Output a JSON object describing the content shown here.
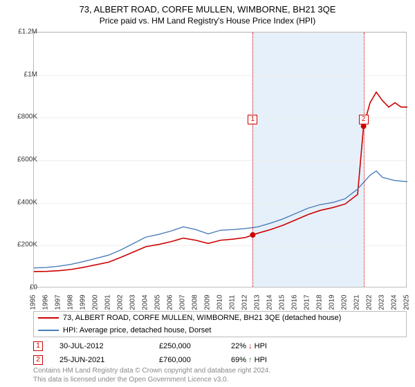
{
  "title": "73, ALBERT ROAD, CORFE MULLEN, WIMBORNE, BH21 3QE",
  "subtitle": "Price paid vs. HM Land Registry's House Price Index (HPI)",
  "chart": {
    "type": "line",
    "background_color": "#ffffff",
    "grid_color": "#eeeeee",
    "border_color": "#bbbbbb",
    "ylim": [
      0,
      1200000
    ],
    "ytick_step": 200000,
    "yticks": [
      "£0",
      "£200K",
      "£400K",
      "£600K",
      "£800K",
      "£1M",
      "£1.2M"
    ],
    "xlim": [
      1995,
      2025
    ],
    "xticks": [
      1995,
      1996,
      1997,
      1998,
      1999,
      2000,
      2001,
      2002,
      2003,
      2004,
      2005,
      2006,
      2007,
      2008,
      2009,
      2010,
      2011,
      2012,
      2013,
      2014,
      2015,
      2016,
      2017,
      2018,
      2019,
      2020,
      2021,
      2022,
      2023,
      2024,
      2025
    ],
    "shaded_region": {
      "start": 2012.58,
      "end": 2021.48,
      "color": "#e6f0fa"
    },
    "event_lines": [
      {
        "x": 2012.58,
        "color": "#cc0000",
        "label_y": 0.34
      },
      {
        "x": 2021.48,
        "color": "#cc0000",
        "label_y": 0.34
      }
    ],
    "series": [
      {
        "name": "property",
        "color": "#cc0000",
        "width": 1.6,
        "markers": [
          {
            "x": 2012.58,
            "y": 250000
          },
          {
            "x": 2021.48,
            "y": 760000
          }
        ],
        "points": [
          [
            1995,
            78000
          ],
          [
            1996,
            79000
          ],
          [
            1997,
            82000
          ],
          [
            1998,
            88000
          ],
          [
            1999,
            98000
          ],
          [
            2000,
            110000
          ],
          [
            2001,
            122000
          ],
          [
            2002,
            145000
          ],
          [
            2003,
            170000
          ],
          [
            2004,
            195000
          ],
          [
            2005,
            205000
          ],
          [
            2006,
            218000
          ],
          [
            2007,
            235000
          ],
          [
            2008,
            225000
          ],
          [
            2009,
            210000
          ],
          [
            2010,
            225000
          ],
          [
            2011,
            230000
          ],
          [
            2012,
            238000
          ],
          [
            2012.58,
            250000
          ],
          [
            2013,
            258000
          ],
          [
            2014,
            275000
          ],
          [
            2015,
            295000
          ],
          [
            2016,
            320000
          ],
          [
            2017,
            345000
          ],
          [
            2018,
            365000
          ],
          [
            2019,
            378000
          ],
          [
            2020,
            395000
          ],
          [
            2021,
            440000
          ],
          [
            2021.48,
            760000
          ],
          [
            2022,
            870000
          ],
          [
            2022.5,
            920000
          ],
          [
            2023,
            880000
          ],
          [
            2023.5,
            850000
          ],
          [
            2024,
            870000
          ],
          [
            2024.5,
            850000
          ],
          [
            2025,
            850000
          ]
        ]
      },
      {
        "name": "hpi",
        "color": "#4a7db8",
        "width": 1.4,
        "points": [
          [
            1995,
            95000
          ],
          [
            1996,
            97000
          ],
          [
            1997,
            103000
          ],
          [
            1998,
            112000
          ],
          [
            1999,
            125000
          ],
          [
            2000,
            140000
          ],
          [
            2001,
            155000
          ],
          [
            2002,
            180000
          ],
          [
            2003,
            210000
          ],
          [
            2004,
            240000
          ],
          [
            2005,
            252000
          ],
          [
            2006,
            268000
          ],
          [
            2007,
            288000
          ],
          [
            2008,
            275000
          ],
          [
            2009,
            255000
          ],
          [
            2010,
            272000
          ],
          [
            2011,
            275000
          ],
          [
            2012,
            280000
          ],
          [
            2013,
            288000
          ],
          [
            2014,
            305000
          ],
          [
            2015,
            325000
          ],
          [
            2016,
            350000
          ],
          [
            2017,
            375000
          ],
          [
            2018,
            392000
          ],
          [
            2019,
            402000
          ],
          [
            2020,
            420000
          ],
          [
            2021,
            465000
          ],
          [
            2022,
            530000
          ],
          [
            2022.5,
            550000
          ],
          [
            2023,
            520000
          ],
          [
            2024,
            505000
          ],
          [
            2025,
            500000
          ]
        ]
      }
    ]
  },
  "legend": {
    "items": [
      {
        "color": "#cc0000",
        "text": "73, ALBERT ROAD, CORFE MULLEN, WIMBORNE, BH21 3QE (detached house)"
      },
      {
        "color": "#4a7db8",
        "text": "HPI: Average price, detached house, Dorset"
      }
    ]
  },
  "sales": [
    {
      "num": "1",
      "color": "#cc0000",
      "date": "30-JUL-2012",
      "price": "£250,000",
      "pct": "22%",
      "dir": "down",
      "suffix": "HPI"
    },
    {
      "num": "2",
      "color": "#cc0000",
      "date": "25-JUN-2021",
      "price": "£760,000",
      "pct": "69%",
      "dir": "up",
      "suffix": "HPI"
    }
  ],
  "footer": {
    "line1": "Contains HM Land Registry data © Crown copyright and database right 2024.",
    "line2": "This data is licensed under the Open Government Licence v3.0."
  }
}
